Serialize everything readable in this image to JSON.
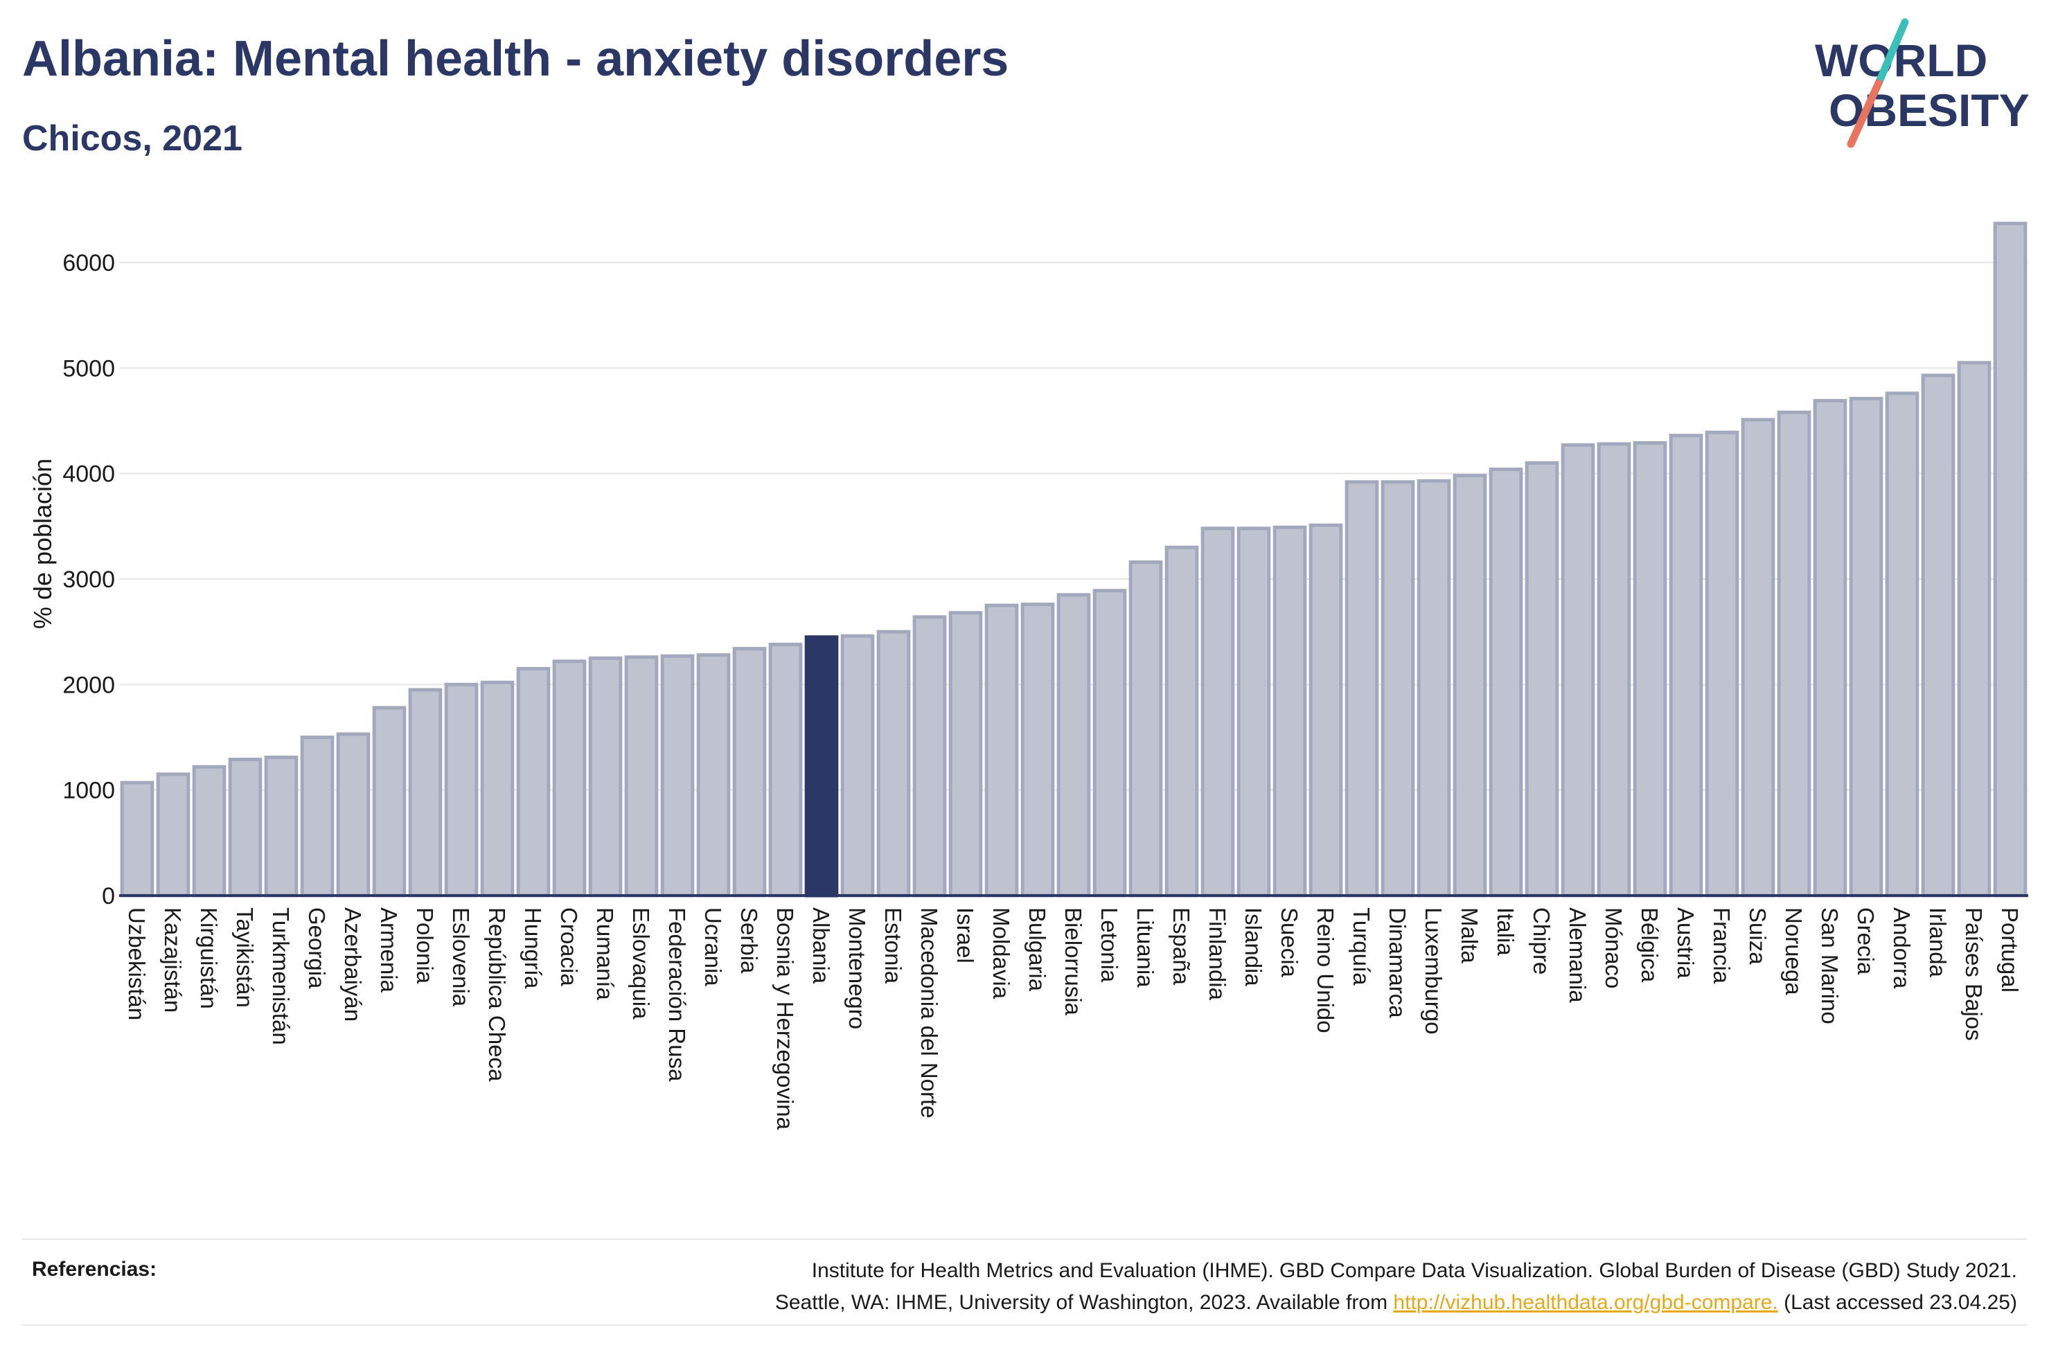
{
  "header": {
    "title": "Albania: Mental health - anxiety disorders",
    "subtitle": "Chicos, 2021"
  },
  "logo": {
    "line1": "WORLD",
    "line2": "OBESITY",
    "colors": {
      "text": "#2b3765",
      "slash_top": "#3bbfb8",
      "slash_bottom": "#e8735f"
    }
  },
  "colors": {
    "bar_default": "#bfc3d0",
    "bar_default_stroke": "#a3a9bd",
    "bar_highlight": "#2b3765",
    "axis": "#2b3765",
    "grid": "#e6e6e6",
    "text": "#1a1a1a"
  },
  "chart_data": {
    "type": "bar",
    "title": "",
    "ylabel": "% de población",
    "xlabel": "",
    "ylim": [
      0,
      6500
    ],
    "yticks": [
      0,
      1000,
      2000,
      3000,
      4000,
      5000,
      6000
    ],
    "grid": true,
    "highlight": "Albania",
    "categories": [
      "Uzbekistán",
      "Kazajistán",
      "Kirguistán",
      "Tayikistán",
      "Turkmenistán",
      "Georgia",
      "Azerbaiyán",
      "Armenia",
      "Polonia",
      "Eslovenia",
      "República Checa",
      "Hungría",
      "Croacia",
      "Rumanía",
      "Eslovaquia",
      "Federación Rusa",
      "Ucrania",
      "Serbia",
      "Bosnia y Herzegovina",
      "Albania",
      "Montenegro",
      "Estonia",
      "Macedonia del Norte",
      "Israel",
      "Moldavia",
      "Bulgaria",
      "Bielorrusia",
      "Letonia",
      "Lituania",
      "España",
      "Finlandia",
      "Islandia",
      "Suecia",
      "Reino Unido",
      "Turquía",
      "Dinamarca",
      "Luxemburgo",
      "Malta",
      "Italia",
      "Chipre",
      "Alemania",
      "Mónaco",
      "Bélgica",
      "Austria",
      "Francia",
      "Suiza",
      "Noruega",
      "San Marino",
      "Grecia",
      "Andorra",
      "Irlanda",
      "Países Bajos",
      "Portugal"
    ],
    "values": [
      1070,
      1150,
      1220,
      1290,
      1310,
      1500,
      1530,
      1780,
      1950,
      2000,
      2020,
      2150,
      2220,
      2250,
      2260,
      2270,
      2280,
      2340,
      2380,
      2450,
      2460,
      2500,
      2640,
      2680,
      2750,
      2760,
      2850,
      2890,
      3160,
      3300,
      3480,
      3480,
      3490,
      3510,
      3920,
      3920,
      3930,
      3980,
      4040,
      4100,
      4270,
      4280,
      4290,
      4360,
      4390,
      4510,
      4580,
      4690,
      4710,
      4760,
      4930,
      5050,
      6370
    ]
  },
  "references": {
    "label": "Referencias:",
    "line1": "Institute for Health Metrics and Evaluation (IHME). GBD Compare Data Visualization. Global Burden of Disease (GBD) Study 2021.",
    "line2_prefix": "Seattle, WA: IHME, University of Washington, 2023. Available from ",
    "link": "http://vizhub.healthdata.org/gbd-compare.",
    "line2_suffix": " (Last accessed 23.04.25)"
  }
}
